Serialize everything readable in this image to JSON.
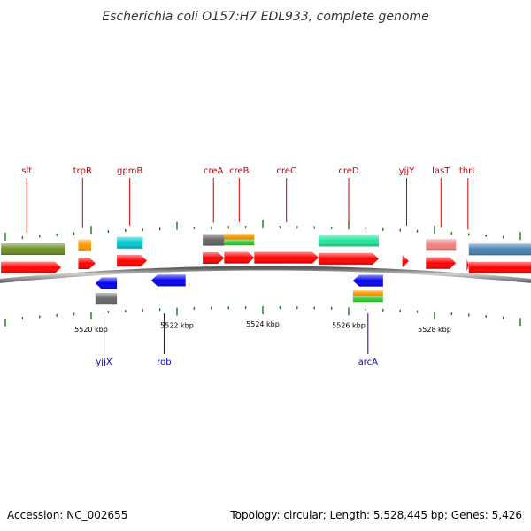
{
  "title": "Escherichia coli O157:H7 EDL933, complete genome",
  "footer": {
    "accession": "Accession: NC_002655",
    "summary": "Topology: circular; Length: 5,528,445 bp; Genes: 5,426"
  },
  "colors": {
    "backbone": "#8a8a8a",
    "cds": "#ff0000",
    "label_forward": "#cc0000",
    "label_reverse": "#0000cc",
    "tick": "#1a7a1a"
  },
  "scale": {
    "unit": "kbp",
    "labeled_ticks": [
      {
        "kbp": 5520,
        "label": "5520 kbp"
      },
      {
        "kbp": 5522,
        "label": "5522 kbp"
      },
      {
        "kbp": 5524,
        "label": "5524 kbp"
      },
      {
        "kbp": 5526,
        "label": "5526 kbp"
      },
      {
        "kbp": 5528,
        "label": "5528 kbp"
      }
    ]
  },
  "cds_forward": [
    {
      "start": 5517.9,
      "end": 5519.3,
      "arrow": true
    },
    {
      "start": 5519.7,
      "end": 5520.1,
      "arrow": true
    },
    {
      "start": 5520.6,
      "end": 5521.3,
      "arrow": true
    },
    {
      "start": 5522.6,
      "end": 5523.1,
      "arrow": true
    },
    {
      "start": 5523.1,
      "end": 5523.8,
      "arrow": true
    },
    {
      "start": 5523.8,
      "end": 5525.3,
      "arrow": true
    },
    {
      "start": 5525.3,
      "end": 5526.7,
      "arrow": true
    },
    {
      "start": 5527.25,
      "end": 5527.4,
      "arrow": true
    },
    {
      "start": 5527.8,
      "end": 5528.5,
      "arrow": true
    },
    {
      "start": 5528.75,
      "end": 5528.8,
      "arrow": true
    },
    {
      "start": 5528.8,
      "end": 5530.3,
      "arrow": false
    }
  ],
  "cds_reverse": [
    {
      "start": 5520.1,
      "end": 5520.6
    },
    {
      "start": 5521.4,
      "end": 5522.2
    },
    {
      "start": 5526.1,
      "end": 5526.8
    }
  ],
  "features_forward": [
    {
      "start": 5517.9,
      "end": 5519.4,
      "color": "#6b8e23"
    },
    {
      "start": 5519.7,
      "end": 5520.0,
      "color": "#ff9900"
    },
    {
      "start": 5520.6,
      "end": 5521.2,
      "color": "#00c8cc"
    },
    {
      "start": 5522.6,
      "end": 5523.1,
      "color": "#666666"
    },
    {
      "start": 5523.1,
      "end": 5523.8,
      "color": "#ff9900",
      "half": "top"
    },
    {
      "start": 5523.1,
      "end": 5523.8,
      "color": "#33cc33",
      "half": "bottom"
    },
    {
      "start": 5525.3,
      "end": 5526.7,
      "color": "#1ee89a"
    },
    {
      "start": 5527.8,
      "end": 5528.5,
      "color": "#f08080"
    },
    {
      "start": 5528.8,
      "end": 5530.3,
      "color": "#4682b4"
    }
  ],
  "features_reverse": [
    {
      "start": 5520.1,
      "end": 5520.6,
      "color": "#666666"
    },
    {
      "start": 5526.1,
      "end": 5526.8,
      "color": "#ff9900",
      "half": "top"
    },
    {
      "start": 5526.1,
      "end": 5526.8,
      "color": "#33cc33",
      "half": "bottom"
    }
  ],
  "gene_labels_forward": [
    {
      "name": "slt",
      "pos": 5518.5
    },
    {
      "name": "trpR",
      "pos": 5519.8
    },
    {
      "name": "gpmB",
      "pos": 5520.9
    },
    {
      "name": "creA",
      "pos": 5522.85
    },
    {
      "name": "creB",
      "pos": 5523.45
    },
    {
      "name": "creC",
      "pos": 5524.55
    },
    {
      "name": "creD",
      "pos": 5526.0
    },
    {
      "name": "yjjY",
      "pos": 5527.35
    },
    {
      "name": "lasT",
      "pos": 5528.15
    },
    {
      "name": "thrL",
      "pos": 5528.78
    }
  ],
  "gene_labels_reverse": [
    {
      "name": "yjjX",
      "pos": 5520.3
    },
    {
      "name": "rob",
      "pos": 5521.7
    },
    {
      "name": "arcA",
      "pos": 5526.45
    }
  ]
}
